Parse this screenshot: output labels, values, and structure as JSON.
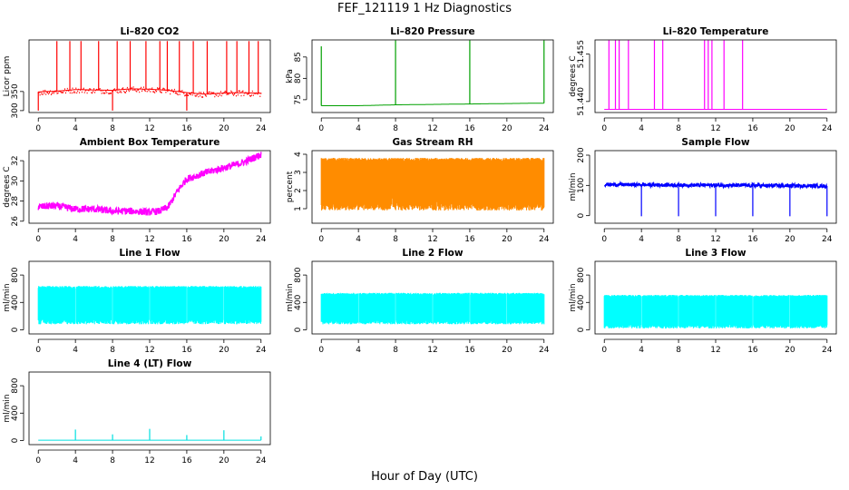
{
  "title": "FEF_121119  1 Hz Diagnostics",
  "xlabel": "Hour of Day (UTC)",
  "chart_data": [
    {
      "type": "line",
      "title": "Li–820 CO2",
      "ylabel": "Licor ppm",
      "ylim": [
        295,
        485
      ],
      "yticks": [
        "300",
        "350"
      ],
      "ytick_values": [
        300,
        350
      ],
      "xlim": [
        -1,
        25
      ],
      "xticks": [
        0,
        4,
        8,
        12,
        16,
        20,
        24
      ],
      "color": "#ff0000",
      "series": [
        {
          "x": [
            0,
            2,
            4,
            6,
            8,
            10,
            12,
            14,
            16,
            18,
            20,
            22,
            24
          ],
          "values": [
            349,
            351,
            355,
            354,
            353,
            357,
            356,
            353,
            347,
            343,
            346,
            347,
            345
          ]
        }
      ],
      "spikes_x": [
        2,
        3.4,
        4.6,
        6.5,
        8.5,
        9.9,
        11.6,
        13.1,
        13.9,
        15.2,
        16.7,
        18.2,
        20.3,
        21.4,
        22.7,
        23.7
      ],
      "spike_top": 482,
      "dips_x": [
        0,
        8,
        16
      ],
      "dip_bottom": 300
    },
    {
      "type": "line",
      "title": "Li–820 Pressure",
      "ylabel": "kPa",
      "ylim": [
        72,
        89
      ],
      "yticks": [
        "75",
        "80",
        "85"
      ],
      "ytick_values": [
        75,
        80,
        85
      ],
      "xlim": [
        -1,
        25
      ],
      "xticks": [
        0,
        4,
        8,
        12,
        16,
        20,
        24
      ],
      "color": "#00a000",
      "series": [
        {
          "x": [
            0,
            4,
            8,
            12,
            16,
            20,
            24
          ],
          "values": [
            73.6,
            73.6,
            73.8,
            73.9,
            74.0,
            74.1,
            74.2
          ]
        }
      ],
      "spikes_x": [
        0,
        8,
        16,
        24
      ],
      "spike_tops": [
        87.5,
        89,
        89,
        89
      ]
    },
    {
      "type": "line",
      "title": "Li–820 Temperature",
      "ylabel": "degrees C",
      "ylim": [
        51.4365,
        51.4595
      ],
      "yticks": [
        "51.440",
        "51.455"
      ],
      "ytick_values": [
        51.44,
        51.455
      ],
      "xlim": [
        -1,
        25
      ],
      "xticks": [
        0,
        4,
        8,
        12,
        16,
        20,
        24
      ],
      "color": "#ff00ff",
      "series": [
        {
          "x": [
            0,
            24
          ],
          "values": [
            51.4375,
            51.4375
          ]
        }
      ],
      "spikes_x": [
        0.5,
        1.2,
        1.6,
        2.6,
        5.4,
        6.3,
        10.8,
        11.2,
        11.6,
        12.9,
        14.9
      ],
      "spike_top": 51.4595
    },
    {
      "type": "line",
      "title": "Ambient Box Temperature",
      "ylabel": "degrees C",
      "ylim": [
        25.8,
        33
      ],
      "yticks": [
        "26",
        "28",
        "30",
        "32"
      ],
      "ytick_values": [
        26,
        28,
        30,
        32
      ],
      "xlim": [
        -1,
        25
      ],
      "xticks": [
        0,
        4,
        8,
        12,
        16,
        20,
        24
      ],
      "color": "#ff00ff",
      "series": [
        {
          "x": [
            0,
            1,
            2,
            4,
            6,
            8,
            10,
            12,
            13,
            14,
            15,
            16,
            18,
            20,
            22,
            23,
            24
          ],
          "values": [
            27.4,
            27.5,
            27.5,
            27.2,
            27.2,
            27.0,
            27.0,
            26.9,
            27.0,
            27.4,
            29.0,
            30.2,
            30.8,
            31.3,
            31.8,
            32.2,
            32.6
          ]
        }
      ],
      "noise": 0.35
    },
    {
      "type": "band",
      "title": "Gas Stream RH",
      "ylabel": "percent",
      "ylim": [
        0.2,
        4.2
      ],
      "yticks": [
        "1",
        "2",
        "3",
        "4"
      ],
      "ytick_values": [
        1,
        2,
        3,
        4
      ],
      "xlim": [
        -1,
        25
      ],
      "xticks": [
        0,
        4,
        8,
        12,
        16,
        20,
        24
      ],
      "color": "#ff8c00",
      "upper": 3.8,
      "lower": 0.9
    },
    {
      "type": "line",
      "title": "Sample Flow",
      "ylabel": "ml/min",
      "ylim": [
        -25,
        215
      ],
      "yticks": [
        "0",
        "100",
        "200"
      ],
      "ytick_values": [
        0,
        100,
        200
      ],
      "xlim": [
        -1,
        25
      ],
      "xticks": [
        0,
        4,
        8,
        12,
        16,
        20,
        24
      ],
      "color": "#0000ff",
      "series": [
        {
          "x": [
            0,
            24
          ],
          "values": [
            103,
            98
          ]
        }
      ],
      "dips_x": [
        4,
        8,
        12,
        16,
        20,
        24
      ],
      "dip_bottom": -2,
      "noise": 6
    },
    {
      "type": "band",
      "title": "Line 1 Flow",
      "ylabel": "ml/min",
      "ylim": [
        -60,
        1000
      ],
      "yticks": [
        "0",
        "400",
        "800"
      ],
      "ytick_values": [
        0,
        400,
        800
      ],
      "xlim": [
        -1,
        25
      ],
      "xticks": [
        0,
        4,
        8,
        12,
        16,
        20,
        24
      ],
      "color": "#00ffff",
      "upper": 640,
      "lower": 80,
      "gaps_x": [
        4,
        8,
        12,
        16,
        20
      ]
    },
    {
      "type": "band",
      "title": "Line 2 Flow",
      "ylabel": "ml/min",
      "ylim": [
        -60,
        1000
      ],
      "yticks": [
        "0",
        "400",
        "800"
      ],
      "ytick_values": [
        0,
        400,
        800
      ],
      "xlim": [
        -1,
        25
      ],
      "xticks": [
        0,
        4,
        8,
        12,
        16,
        20,
        24
      ],
      "color": "#00ffff",
      "upper": 540,
      "lower": 80,
      "gaps_x": [
        4,
        8,
        12,
        16,
        20
      ]
    },
    {
      "type": "band",
      "title": "Line 3 Flow",
      "ylabel": "ml/min",
      "ylim": [
        -60,
        1000
      ],
      "yticks": [
        "0",
        "400",
        "800"
      ],
      "ytick_values": [
        0,
        400,
        800
      ],
      "xlim": [
        -1,
        25
      ],
      "xticks": [
        0,
        4,
        8,
        12,
        16,
        20,
        24
      ],
      "color": "#00ffff",
      "upper": 510,
      "lower": 20,
      "gaps_x": [
        4,
        8,
        12,
        16,
        20
      ]
    },
    {
      "type": "line",
      "title": "Line 4 (LT) Flow",
      "ylabel": "ml/min",
      "ylim": [
        -60,
        1000
      ],
      "yticks": [
        "0",
        "400",
        "800"
      ],
      "ytick_values": [
        0,
        400,
        800
      ],
      "xlim": [
        -1,
        25
      ],
      "xticks": [
        0,
        4,
        8,
        12,
        16,
        20,
        24
      ],
      "color": "#00e0e0",
      "series": [
        {
          "x": [
            0,
            24
          ],
          "values": [
            5,
            5
          ]
        }
      ],
      "spikes_x": [
        4,
        8,
        12,
        16,
        20,
        24
      ],
      "spike_tops": [
        160,
        90,
        170,
        80,
        150,
        60
      ]
    }
  ]
}
